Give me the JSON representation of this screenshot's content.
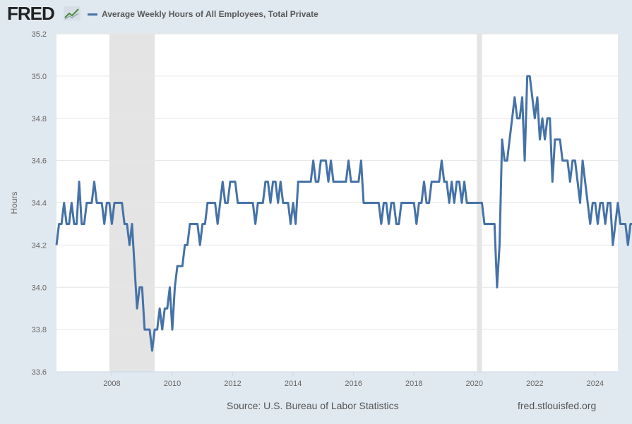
{
  "header": {
    "logo_text": "FRED",
    "logo_icon": "trend-line-icon"
  },
  "chart_data": {
    "type": "line",
    "title": "",
    "xlabel": "",
    "ylabel": "Hours",
    "legend_position": "top-left",
    "grid": true,
    "xlim": [
      "2006-03",
      "2024-10"
    ],
    "ylim": [
      33.6,
      35.2
    ],
    "x_ticks": [
      "2008",
      "2010",
      "2012",
      "2014",
      "2016",
      "2018",
      "2020",
      "2022",
      "2024"
    ],
    "y_ticks": [
      "33.6",
      "33.8",
      "34.0",
      "34.2",
      "34.4",
      "34.6",
      "34.8",
      "35.0",
      "35.2"
    ],
    "recessions": [
      {
        "start": "2007-12",
        "end": "2009-06"
      },
      {
        "start": "2020-02",
        "end": "2020-04"
      }
    ],
    "series": [
      {
        "name": "Average Weekly Hours of All Employees, Total Private",
        "color": "#4572a7",
        "start": "2006-03",
        "frequency": "monthly",
        "values": [
          34.2,
          34.3,
          34.3,
          34.4,
          34.3,
          34.3,
          34.4,
          34.3,
          34.3,
          34.5,
          34.3,
          34.3,
          34.4,
          34.4,
          34.4,
          34.5,
          34.4,
          34.4,
          34.4,
          34.3,
          34.4,
          34.4,
          34.3,
          34.4,
          34.4,
          34.4,
          34.4,
          34.3,
          34.3,
          34.2,
          34.3,
          34.1,
          33.9,
          34.0,
          34.0,
          33.8,
          33.8,
          33.8,
          33.7,
          33.8,
          33.8,
          33.9,
          33.8,
          33.9,
          33.9,
          34.0,
          33.8,
          34.0,
          34.1,
          34.1,
          34.1,
          34.2,
          34.2,
          34.3,
          34.3,
          34.3,
          34.3,
          34.2,
          34.3,
          34.3,
          34.4,
          34.4,
          34.4,
          34.4,
          34.3,
          34.4,
          34.5,
          34.4,
          34.4,
          34.5,
          34.5,
          34.5,
          34.4,
          34.4,
          34.4,
          34.4,
          34.4,
          34.4,
          34.4,
          34.3,
          34.4,
          34.4,
          34.4,
          34.5,
          34.5,
          34.4,
          34.5,
          34.5,
          34.4,
          34.5,
          34.4,
          34.4,
          34.4,
          34.3,
          34.4,
          34.3,
          34.5,
          34.5,
          34.5,
          34.5,
          34.5,
          34.5,
          34.6,
          34.5,
          34.5,
          34.6,
          34.6,
          34.6,
          34.5,
          34.6,
          34.5,
          34.5,
          34.5,
          34.5,
          34.5,
          34.5,
          34.6,
          34.5,
          34.5,
          34.5,
          34.5,
          34.6,
          34.4,
          34.4,
          34.4,
          34.4,
          34.4,
          34.4,
          34.4,
          34.3,
          34.4,
          34.4,
          34.3,
          34.4,
          34.4,
          34.3,
          34.3,
          34.4,
          34.4,
          34.4,
          34.4,
          34.4,
          34.4,
          34.3,
          34.4,
          34.4,
          34.5,
          34.4,
          34.4,
          34.5,
          34.5,
          34.5,
          34.5,
          34.6,
          34.5,
          34.5,
          34.4,
          34.5,
          34.4,
          34.5,
          34.5,
          34.4,
          34.5,
          34.4,
          34.4,
          34.4,
          34.4,
          34.4,
          34.4,
          34.4,
          34.3,
          34.3,
          34.3,
          34.3,
          34.3,
          34.0,
          34.2,
          34.7,
          34.6,
          34.6,
          34.7,
          34.8,
          34.9,
          34.8,
          34.8,
          34.9,
          34.6,
          35.0,
          35.0,
          34.9,
          34.8,
          34.9,
          34.7,
          34.8,
          34.7,
          34.8,
          34.8,
          34.5,
          34.7,
          34.7,
          34.7,
          34.6,
          34.6,
          34.6,
          34.5,
          34.6,
          34.6,
          34.5,
          34.4,
          34.6,
          34.5,
          34.4,
          34.3,
          34.4,
          34.4,
          34.3,
          34.4,
          34.4,
          34.3,
          34.4,
          34.4,
          34.2,
          34.3,
          34.4,
          34.3,
          34.3,
          34.3,
          34.2,
          34.3,
          34.3,
          34.2,
          34.3
        ]
      }
    ]
  },
  "footer": {
    "source": "Source: U.S. Bureau of Labor Statistics",
    "url": "fred.stlouisfed.org"
  }
}
